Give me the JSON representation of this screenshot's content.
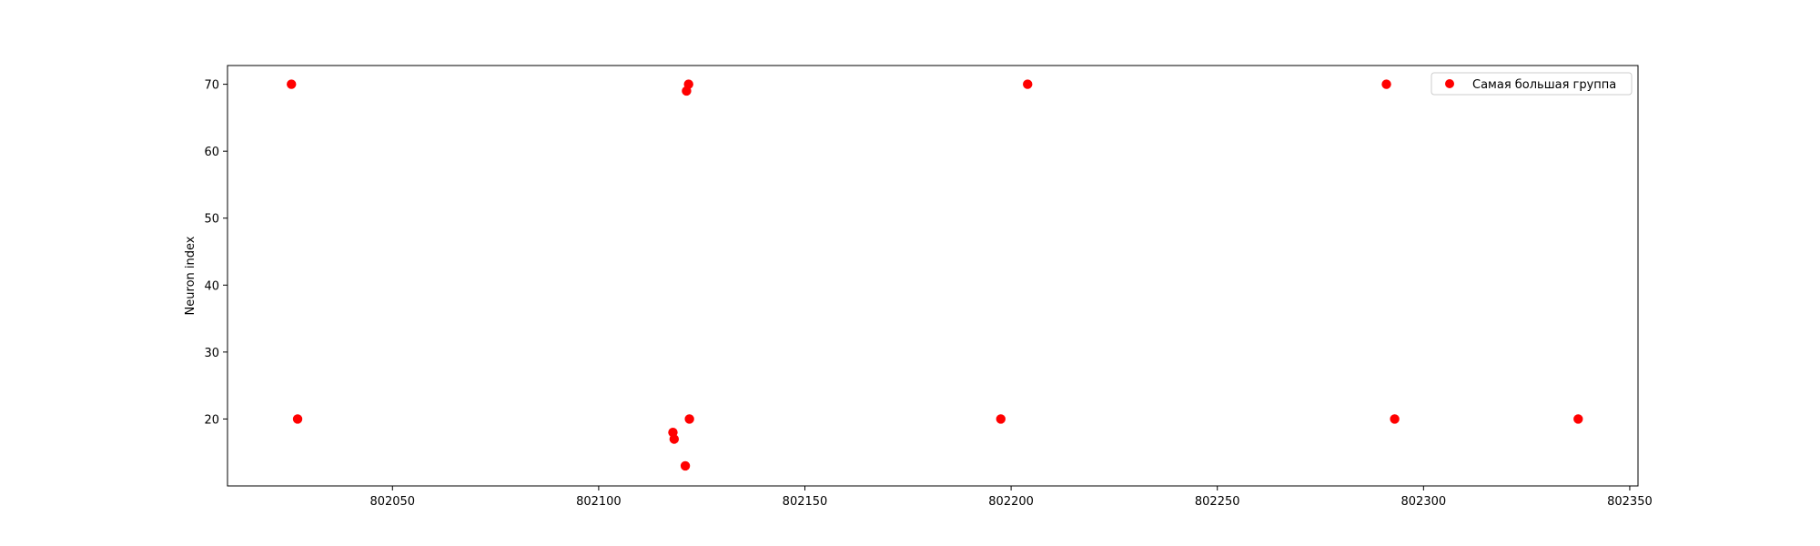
{
  "chart_data": {
    "type": "scatter",
    "title": "",
    "xlabel": "",
    "ylabel": "Neuron index",
    "xlim": [
      802010,
      802352
    ],
    "ylim": [
      10,
      72.8
    ],
    "xticks": [
      802050,
      802100,
      802150,
      802200,
      802250,
      802300,
      802350
    ],
    "yticks": [
      20,
      30,
      40,
      50,
      60,
      70
    ],
    "grid": false,
    "legend_position": "top-right",
    "series": [
      {
        "name": "Самая большая группа",
        "color": "#ff0000",
        "marker": "circle",
        "points": [
          {
            "x": 802025.5,
            "y": 70
          },
          {
            "x": 802027,
            "y": 20
          },
          {
            "x": 802118,
            "y": 18
          },
          {
            "x": 802118.3,
            "y": 17
          },
          {
            "x": 802121,
            "y": 13
          },
          {
            "x": 802121.3,
            "y": 69
          },
          {
            "x": 802121.8,
            "y": 70
          },
          {
            "x": 802122,
            "y": 20
          },
          {
            "x": 802197.5,
            "y": 20
          },
          {
            "x": 802204,
            "y": 70
          },
          {
            "x": 802291,
            "y": 70
          },
          {
            "x": 802293,
            "y": 20
          },
          {
            "x": 802337.5,
            "y": 20
          }
        ]
      }
    ]
  }
}
